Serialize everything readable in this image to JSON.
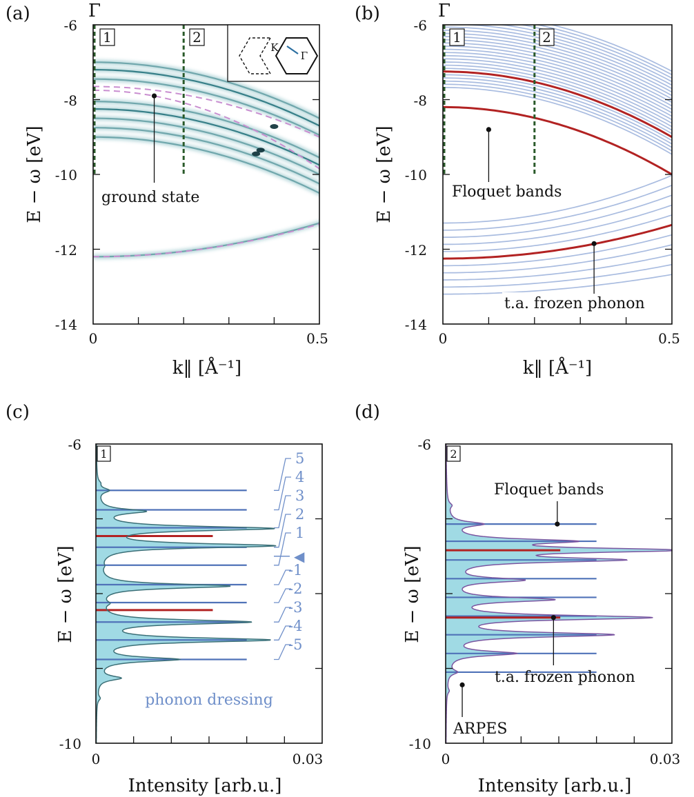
{
  "chart_data": [
    {
      "panel": "(a)",
      "type": "line",
      "top_label": "Γ",
      "xlabel": "k‖ [Å⁻¹]",
      "ylabel": "E − ω [eV]",
      "xlim": [
        0,
        0.5
      ],
      "ylim": [
        -14,
        -6
      ],
      "xticks": [
        "0",
        "0.5"
      ],
      "yticks": [
        "-6",
        "-8",
        "-10",
        "-12",
        "-14"
      ],
      "markers": [
        {
          "label": "1",
          "x": 0
        },
        {
          "label": "2",
          "x": 0.2
        }
      ],
      "inset": {
        "labels": [
          "K",
          "Γ"
        ]
      },
      "annotation": {
        "text": "ground state",
        "x": 0.135,
        "y": -7.9
      },
      "series": [
        {
          "role": "spectral",
          "y0": -7.0,
          "curv": -6
        },
        {
          "role": "spectral",
          "y0": -7.2,
          "curv": -6
        },
        {
          "role": "spectral",
          "y0": -7.45,
          "curv": -6
        },
        {
          "role": "spectral",
          "y0": -8.05,
          "curv": -6
        },
        {
          "role": "spectral",
          "y0": -8.25,
          "curv": -6
        },
        {
          "role": "spectral",
          "y0": -8.5,
          "curv": -6
        },
        {
          "role": "spectral",
          "y0": -8.75,
          "curv": -6
        },
        {
          "role": "spectral",
          "y0": -9.0,
          "curv": -6
        },
        {
          "role": "spectral",
          "y0": -12.2,
          "curv": 3.6
        },
        {
          "role": "dashed",
          "y0": -7.65,
          "curv": -5.4
        },
        {
          "role": "dashed",
          "y0": -7.75,
          "curv": -8.4
        },
        {
          "role": "dashed",
          "y0": -12.2,
          "curv": 3.5
        }
      ]
    },
    {
      "panel": "(b)",
      "type": "line",
      "top_label": "Γ",
      "xlabel": "k‖ [Å⁻¹]",
      "ylabel": "E − ω [eV]",
      "xlim": [
        0,
        0.5
      ],
      "ylim": [
        -14,
        -6
      ],
      "xticks": [
        "0",
        "0.5"
      ],
      "yticks": [
        "-6",
        "-8",
        "-10",
        "-12",
        "-14"
      ],
      "markers": [
        {
          "label": "1",
          "x": 0
        },
        {
          "label": "2",
          "x": 0.2
        }
      ],
      "annotations": [
        {
          "text": "Floquet bands",
          "x": 0.1,
          "y": -8.8
        },
        {
          "text": "t.a. frozen phonon",
          "x": 0.33,
          "y": -11.85
        }
      ],
      "floquet_upper_offsets": [
        -0.5,
        -0.4,
        -0.3,
        -0.2,
        -0.1,
        0,
        0.1,
        0.2,
        0.3,
        0.4,
        0.5,
        0.6,
        0.7,
        0.8,
        0.9,
        1.0,
        1.1,
        1.2,
        1.3,
        1.4,
        1.5,
        1.6,
        1.7,
        1.8,
        1.9
      ],
      "floquet_lower_offsets": [
        -1.0,
        -0.8,
        -0.6,
        -0.4,
        -0.2,
        0,
        0.2,
        0.4,
        0.6,
        0.8,
        1.0
      ],
      "series": [
        {
          "role": "frozen",
          "y0": -7.25,
          "curv": -7.0
        },
        {
          "role": "frozen",
          "y0": -8.2,
          "curv": -7.2
        },
        {
          "role": "frozen",
          "y0": -12.25,
          "curv": 3.6
        }
      ]
    },
    {
      "panel": "(c)",
      "type": "line",
      "marker": "1",
      "xlabel": "Intensity [arb.u.]",
      "ylabel": "E − ω [eV]",
      "xlim": [
        0,
        0.03
      ],
      "ylim": [
        -10,
        -6
      ],
      "xticks": [
        "0",
        "0.03"
      ],
      "yticks": [
        "-6",
        "-10"
      ],
      "floquet_levels": [
        -6.62,
        -6.88,
        -7.12,
        -7.38,
        -7.62,
        -7.88,
        -8.12,
        -8.38,
        -8.62,
        -8.88
      ],
      "floquet_xmax": 0.02,
      "frozen_levels": [
        -7.23,
        -8.22
      ],
      "frozen_xmax": 0.0155,
      "peaks": [
        {
          "e": -6.52,
          "h": 0.0003
        },
        {
          "e": -6.62,
          "h": 0.0015
        },
        {
          "e": -6.9,
          "h": 0.006
        },
        {
          "e": -7.13,
          "h": 0.023
        },
        {
          "e": -7.36,
          "h": 0.0232
        },
        {
          "e": -7.63,
          "h": 0.0003
        },
        {
          "e": -7.9,
          "h": 0.0175
        },
        {
          "e": -8.13,
          "h": 0.0009
        },
        {
          "e": -8.38,
          "h": 0.02
        },
        {
          "e": -8.62,
          "h": 0.0225
        },
        {
          "e": -8.88,
          "h": 0.0105
        },
        {
          "e": -9.13,
          "h": 0.003
        },
        {
          "e": -9.4,
          "h": 0.0004
        }
      ],
      "dressing_labels": [
        "5",
        "4",
        "3",
        "2",
        "1",
        "◀",
        "-1",
        "-2",
        "-3",
        "-4",
        "-5"
      ],
      "dressing_title": "phonon dressing"
    },
    {
      "panel": "(d)",
      "type": "line",
      "marker": "2",
      "xlabel": "Intensity [arb.u.]",
      "ylabel": "E − ω [eV]",
      "xlim": [
        0,
        0.03
      ],
      "ylim": [
        -10,
        -6
      ],
      "xticks": [
        "0",
        "0.03"
      ],
      "yticks": [
        "-6",
        "-10"
      ],
      "floquet_levels": [
        -7.07,
        -7.3,
        -7.55,
        -7.8,
        -8.05,
        -8.3,
        -8.55,
        -8.8,
        -9.05
      ],
      "floquet_xmax": 0.02,
      "frozen_levels": [
        -7.42,
        -8.32
      ],
      "frozen_xmax": 0.0152,
      "peaks": [
        {
          "e": -6.82,
          "h": 0.0005
        },
        {
          "e": -7.07,
          "h": 0.0043
        },
        {
          "e": -7.3,
          "h": 0.0148
        },
        {
          "e": -7.42,
          "h": 0.029
        },
        {
          "e": -7.55,
          "h": 0.0215
        },
        {
          "e": -7.82,
          "h": 0.0095
        },
        {
          "e": -8.08,
          "h": 0.0135
        },
        {
          "e": -8.32,
          "h": 0.0265
        },
        {
          "e": -8.55,
          "h": 0.0215
        },
        {
          "e": -8.8,
          "h": 0.0088
        },
        {
          "e": -9.05,
          "h": 0.0012
        },
        {
          "e": -9.3,
          "h": 0.0003
        }
      ],
      "annotations": [
        {
          "text": "Floquet bands",
          "x": 0.0148,
          "y": -7.07
        },
        {
          "text": "t.a. frozen phonon",
          "x": 0.0143,
          "y": -8.32
        },
        {
          "text": "ARPES",
          "x": 0.0022,
          "y": -9.22
        }
      ]
    }
  ]
}
